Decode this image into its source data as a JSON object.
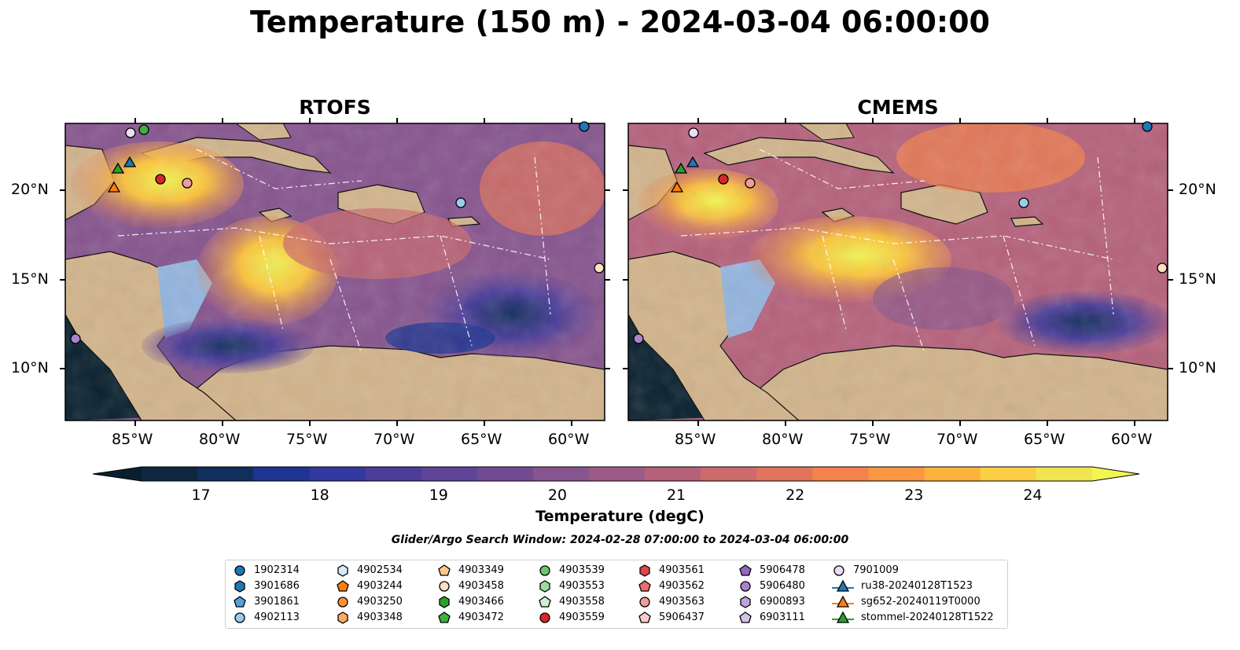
{
  "title": "Temperature (150 m) - 2024-03-04 06:00:00",
  "panels": [
    {
      "title": "RTOFS"
    },
    {
      "title": "CMEMS"
    }
  ],
  "axes": {
    "y_ticks": [
      "20°N",
      "15°N",
      "10°N"
    ],
    "x_ticks": [
      "85°W",
      "80°W",
      "75°W",
      "70°W",
      "65°W",
      "60°W"
    ]
  },
  "colorbar": {
    "label": "Temperature (degC)",
    "ticks": [
      "17",
      "18",
      "19",
      "20",
      "21",
      "22",
      "23",
      "24"
    ],
    "range": [
      16.75,
      24.5
    ],
    "colors": [
      "#0f2840",
      "#112f5d",
      "#1d3590",
      "#33389e",
      "#4a3d9a",
      "#5e4396",
      "#714b92",
      "#86548e",
      "#9c5b86",
      "#b5617b",
      "#cc6a6c",
      "#e2745b",
      "#f3824b",
      "#fa9740",
      "#fcb23c",
      "#fbce43",
      "#f2e44f"
    ],
    "under_color": "#08202d",
    "over_color": "#f2f653"
  },
  "search_window": "Glider/Argo Search Window: 2024-02-28 07:00:00 to 2024-03-04 06:00:00",
  "legend": {
    "columns": [
      [
        {
          "label": "1902314",
          "marker": "circle",
          "color": "#1f77b4"
        },
        {
          "label": "3901686",
          "marker": "hexagon",
          "color": "#1f77b4"
        },
        {
          "label": "3901861",
          "marker": "pentagon",
          "color": "#55a0d8"
        },
        {
          "label": "4902113",
          "marker": "circle",
          "color": "#9ccbee"
        }
      ],
      [
        {
          "label": "4902534",
          "marker": "hexagon",
          "color": "#d5ebfa"
        },
        {
          "label": "4903244",
          "marker": "pentagon",
          "color": "#ff7f0e"
        },
        {
          "label": "4903250",
          "marker": "circle",
          "color": "#ff9130"
        },
        {
          "label": "4903348",
          "marker": "hexagon",
          "color": "#ffac5f"
        }
      ],
      [
        {
          "label": "4903349",
          "marker": "pentagon",
          "color": "#ffc88e"
        },
        {
          "label": "4903458",
          "marker": "circle",
          "color": "#ffe0c0"
        },
        {
          "label": "4903466",
          "marker": "hexagon",
          "color": "#2ca02c"
        },
        {
          "label": "4903472",
          "marker": "pentagon",
          "color": "#3eb13e"
        }
      ],
      [
        {
          "label": "4903539",
          "marker": "circle",
          "color": "#6cc86c"
        },
        {
          "label": "4903553",
          "marker": "hexagon",
          "color": "#9bdc9b"
        },
        {
          "label": "4903558",
          "marker": "pentagon",
          "color": "#cdf0cd"
        },
        {
          "label": "4903559",
          "marker": "circle",
          "color": "#d62728"
        }
      ],
      [
        {
          "label": "4903561",
          "marker": "hexagon",
          "color": "#e0464a"
        },
        {
          "label": "4903562",
          "marker": "pentagon",
          "color": "#ea6d70"
        },
        {
          "label": "4903563",
          "marker": "circle",
          "color": "#f29a9a"
        },
        {
          "label": "5906437",
          "marker": "pentagon",
          "color": "#fbcaca"
        }
      ],
      [
        {
          "label": "5906478",
          "marker": "pentagon",
          "color": "#9467bd"
        },
        {
          "label": "5906480",
          "marker": "circle",
          "color": "#a984cc"
        },
        {
          "label": "6900893",
          "marker": "hexagon",
          "color": "#bfa2db"
        },
        {
          "label": "6903111",
          "marker": "pentagon",
          "color": "#d6c2ea"
        }
      ],
      [
        {
          "label": "7901009",
          "marker": "circle",
          "color": "#ecdcf7"
        },
        {
          "label": "ru38-20240128T1523",
          "marker": "triangle-line",
          "color": "#1f77b4"
        },
        {
          "label": "sg652-20240119T0000",
          "marker": "triangle-line",
          "color": "#ff7f0e"
        },
        {
          "label": "stommel-20240128T1522",
          "marker": "triangle-line",
          "color": "#2ca02c"
        }
      ]
    ]
  }
}
